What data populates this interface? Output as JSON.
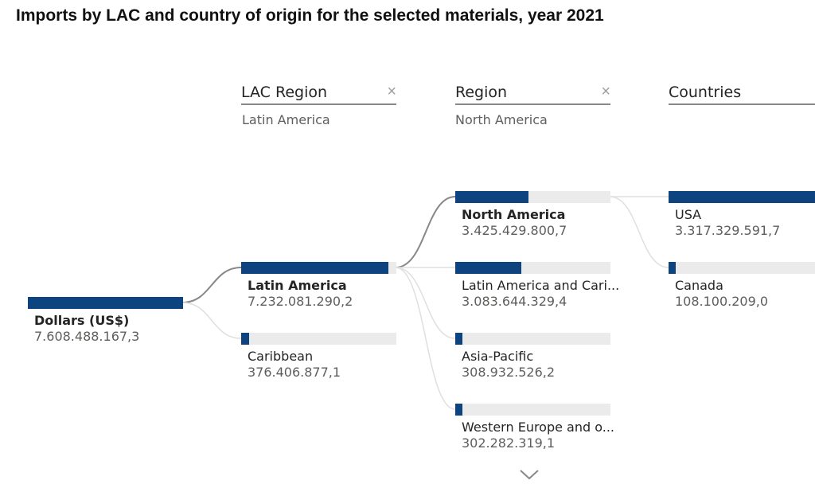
{
  "title": "Imports by LAC and country of origin for the selected materials, year 2021",
  "colors": {
    "bar": "#0d4480",
    "track": "#ebebeb",
    "link_active": "#8a8886",
    "link_inactive": "#e1dfdd"
  },
  "levels": [
    {
      "name": "LAC Region",
      "filter": "Latin America",
      "close_icon": "×"
    },
    {
      "name": "Region",
      "filter": "North America",
      "close_icon": "×"
    },
    {
      "name": "Countries",
      "filter": "",
      "close_icon": ""
    }
  ],
  "chart_data": {
    "type": "decomposition-tree",
    "title": "Imports by LAC and country of origin for the selected materials, year 2021",
    "measure": "Dollars (US$)",
    "root": {
      "label": "Dollars (US$)",
      "value_text": "7.608.488.167,3",
      "value": 7608488167.3
    },
    "levels": [
      {
        "name": "LAC Region",
        "nodes": [
          {
            "label": "Latin America",
            "value_text": "7.232.081.290,2",
            "value": 7232081290.2,
            "selected": true
          },
          {
            "label": "Caribbean",
            "value_text": "376.406.877,1",
            "value": 376406877.1,
            "selected": false
          }
        ]
      },
      {
        "name": "Region",
        "nodes": [
          {
            "label": "North America",
            "value_text": "3.425.429.800,7",
            "value": 3425429800.7,
            "selected": true
          },
          {
            "label": "Latin America and Cari...",
            "value_text": "3.083.644.329,4",
            "value": 3083644329.4,
            "selected": false
          },
          {
            "label": "Asia-Pacific",
            "value_text": "308.932.526,2",
            "value": 308932526.2,
            "selected": false
          },
          {
            "label": "Western Europe and o...",
            "value_text": "302.282.319,1",
            "value": 302282319.1,
            "selected": false
          }
        ]
      },
      {
        "name": "Countries",
        "nodes": [
          {
            "label": "USA",
            "value_text": "3.317.329.591,7",
            "value": 3317329591.7,
            "selected": false
          },
          {
            "label": "Canada",
            "value_text": "108.100.209,0",
            "value": 108100209.0,
            "selected": false
          }
        ]
      }
    ]
  }
}
